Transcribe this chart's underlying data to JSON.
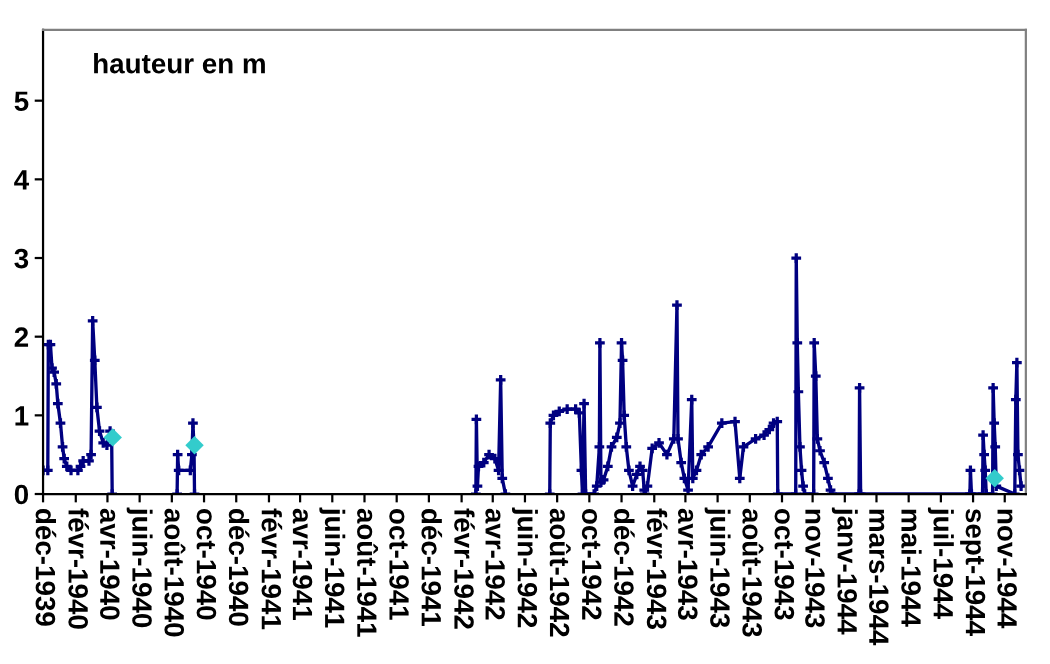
{
  "chart_data": {
    "type": "line",
    "title": "hauteur en m",
    "xlim": [
      "1939-12-01",
      "1945-01-05"
    ],
    "ylim": [
      0,
      5.9
    ],
    "yticks": [
      0,
      1,
      2,
      3,
      4,
      5
    ],
    "xticks": [
      {
        "value": "1939-12-01",
        "label": "déc-1939"
      },
      {
        "value": "1940-02-01",
        "label": "févr-1940"
      },
      {
        "value": "1940-04-01",
        "label": "avr-1940"
      },
      {
        "value": "1940-06-01",
        "label": "juin-1940"
      },
      {
        "value": "1940-08-01",
        "label": "août-1940"
      },
      {
        "value": "1940-10-01",
        "label": "oct-1940"
      },
      {
        "value": "1940-12-01",
        "label": "déc-1940"
      },
      {
        "value": "1941-02-01",
        "label": "févr-1941"
      },
      {
        "value": "1941-04-01",
        "label": "avr-1941"
      },
      {
        "value": "1941-06-01",
        "label": "juin-1941"
      },
      {
        "value": "1941-08-01",
        "label": "août-1941"
      },
      {
        "value": "1941-10-01",
        "label": "oct-1941"
      },
      {
        "value": "1941-12-01",
        "label": "déc-1941"
      },
      {
        "value": "1942-02-01",
        "label": "févr-1942"
      },
      {
        "value": "1942-04-01",
        "label": "avr-1942"
      },
      {
        "value": "1942-06-01",
        "label": "juin-1942"
      },
      {
        "value": "1942-08-01",
        "label": "août-1942"
      },
      {
        "value": "1942-10-01",
        "label": "oct-1942"
      },
      {
        "value": "1942-12-01",
        "label": "déc-1942"
      },
      {
        "value": "1943-02-01",
        "label": "févr-1943"
      },
      {
        "value": "1943-04-01",
        "label": "avr-1943"
      },
      {
        "value": "1943-06-01",
        "label": "juin-1943"
      },
      {
        "value": "1943-08-01",
        "label": "août-1943"
      },
      {
        "value": "1943-10-01",
        "label": "oct-1943"
      },
      {
        "value": "1943-11-28",
        "label": "nov-1943"
      },
      {
        "value": "1944-01-28",
        "label": "janv-1944"
      },
      {
        "value": "1944-03-28",
        "label": "mars-1944"
      },
      {
        "value": "1944-05-28",
        "label": "mai-1944"
      },
      {
        "value": "1944-07-28",
        "label": "juil-1944"
      },
      {
        "value": "1944-09-27",
        "label": "sept-1944"
      },
      {
        "value": "1944-11-26",
        "label": "nov-1944"
      }
    ],
    "grid": false,
    "legend": false,
    "series": [
      {
        "color": "#000080",
        "marker": "cross",
        "line_style": "solid",
        "x": [
          "1939-12-01",
          "1939-12-10",
          "1939-12-11",
          "1939-12-15",
          "1939-12-18",
          "1939-12-22",
          "1939-12-26",
          "1939-12-29",
          "1940-01-03",
          "1940-01-07",
          "1940-01-10",
          "1940-01-15",
          "1940-01-23",
          "1940-02-05",
          "1940-02-10",
          "1940-02-15",
          "1940-02-26",
          "1940-03-01",
          "1940-03-04",
          "1940-03-08",
          "1940-03-12",
          "1940-03-17",
          "1940-03-24",
          "1940-03-31",
          "1940-04-06",
          "1940-04-09",
          "1940-04-10",
          "1940-06-01",
          "1940-08-11",
          "1940-08-12",
          "1940-08-14",
          "1940-09-05",
          "1940-09-08",
          "1940-09-10",
          "1940-09-12",
          "1940-09-13",
          "1941-06-01",
          "1942-02-28",
          "1942-03-01",
          "1942-03-03",
          "1942-03-05",
          "1942-03-15",
          "1942-03-25",
          "1942-04-05",
          "1942-04-12",
          "1942-04-16",
          "1942-04-19",
          "1942-04-25",
          "1942-06-01",
          "1942-07-18",
          "1942-07-19",
          "1942-07-25",
          "1942-08-05",
          "1942-08-20",
          "1942-09-05",
          "1942-09-12",
          "1942-09-16",
          "1942-09-18",
          "1942-09-21",
          "1942-09-24",
          "1942-10-10",
          "1942-10-15",
          "1942-10-20",
          "1942-10-21",
          "1942-10-23",
          "1942-10-28",
          "1942-11-05",
          "1942-11-12",
          "1942-11-22",
          "1942-11-28",
          "1942-12-01",
          "1942-12-03",
          "1942-12-06",
          "1942-12-10",
          "1942-12-15",
          "1942-12-22",
          "1942-12-30",
          "1943-01-05",
          "1943-01-10",
          "1943-01-13",
          "1943-01-14",
          "1943-01-19",
          "1943-01-28",
          "1943-02-10",
          "1943-02-25",
          "1943-03-10",
          "1943-03-16",
          "1943-03-18",
          "1943-03-24",
          "1943-03-30",
          "1943-04-06",
          "1943-04-13",
          "1943-04-15",
          "1943-04-22",
          "1943-05-01",
          "1943-05-14",
          "1943-06-09",
          "1943-07-04",
          "1943-07-13",
          "1943-07-20",
          "1943-08-12",
          "1943-08-28",
          "1943-09-07",
          "1943-09-15",
          "1943-09-22",
          "1943-09-23",
          "1943-10-27",
          "1943-10-28",
          "1943-10-30",
          "1943-11-01",
          "1943-11-04",
          "1943-11-07",
          "1943-11-10",
          "1943-11-13",
          "1943-11-30",
          "1943-12-01",
          "1943-12-04",
          "1943-12-07",
          "1943-12-12",
          "1943-12-20",
          "1943-12-27",
          "1944-01-01",
          "1944-01-04",
          "1944-02-24",
          "1944-02-25",
          "1944-02-27",
          "1944-09-21",
          "1944-09-22",
          "1944-09-24",
          "1944-10-15",
          "1944-10-16",
          "1944-10-18",
          "1944-10-20",
          "1944-10-22",
          "1944-11-03",
          "1944-11-04",
          "1944-11-06",
          "1944-11-08",
          "1944-11-10",
          "1944-12-15",
          "1944-12-17",
          "1944-12-19",
          "1944-12-21",
          "1944-12-24",
          "1944-12-27"
        ],
        "values": [
          0.3,
          0.3,
          1.9,
          1.9,
          1.6,
          1.55,
          1.4,
          1.15,
          0.9,
          0.6,
          0.45,
          0.35,
          0.3,
          0.3,
          0.35,
          0.42,
          0.42,
          0.5,
          2.2,
          1.7,
          1.1,
          0.8,
          0.65,
          0.62,
          0.8,
          0.7,
          0,
          null,
          0,
          0.5,
          0.3,
          0.3,
          0.5,
          0.9,
          0.6,
          0,
          null,
          0,
          0.95,
          0.1,
          0.35,
          0.4,
          0.5,
          0.45,
          0.3,
          1.45,
          0.2,
          0,
          null,
          0,
          0.9,
          1.0,
          1.05,
          1.08,
          1.08,
          1.03,
          0.3,
          0,
          1.15,
          0,
          0,
          0.1,
          0.6,
          1.92,
          0.15,
          0.18,
          0.35,
          0.6,
          0.72,
          0.9,
          1.92,
          1.7,
          1.0,
          0.6,
          0.3,
          0.1,
          0.25,
          0.35,
          0.3,
          0.05,
          0,
          0.1,
          0.58,
          0.65,
          0.5,
          0.7,
          2.4,
          0.7,
          0.4,
          0.2,
          0.05,
          1.2,
          0.2,
          0.3,
          0.5,
          0.6,
          0.9,
          0.92,
          0.2,
          0.6,
          0.7,
          0.75,
          0.82,
          0.9,
          0.92,
          0,
          0,
          3.0,
          1.92,
          1.3,
          0.6,
          0.3,
          0.1,
          0,
          0,
          1.92,
          1.5,
          0.7,
          0.55,
          0.4,
          0.2,
          0.05,
          0,
          0,
          1.35,
          0,
          0,
          0.3,
          0,
          0,
          0.75,
          0.5,
          0.3,
          0,
          0,
          1.35,
          0.9,
          0.6,
          0.1,
          0,
          1.2,
          1.67,
          0.5,
          0.3,
          0.1
        ]
      },
      {
        "color": "#33cccc",
        "type": "scatter",
        "marker": "diamond",
        "x": [
          "1940-04-11",
          "1940-09-13",
          "1944-11-07"
        ],
        "values": [
          0.72,
          0.62,
          0.2
        ]
      }
    ]
  }
}
